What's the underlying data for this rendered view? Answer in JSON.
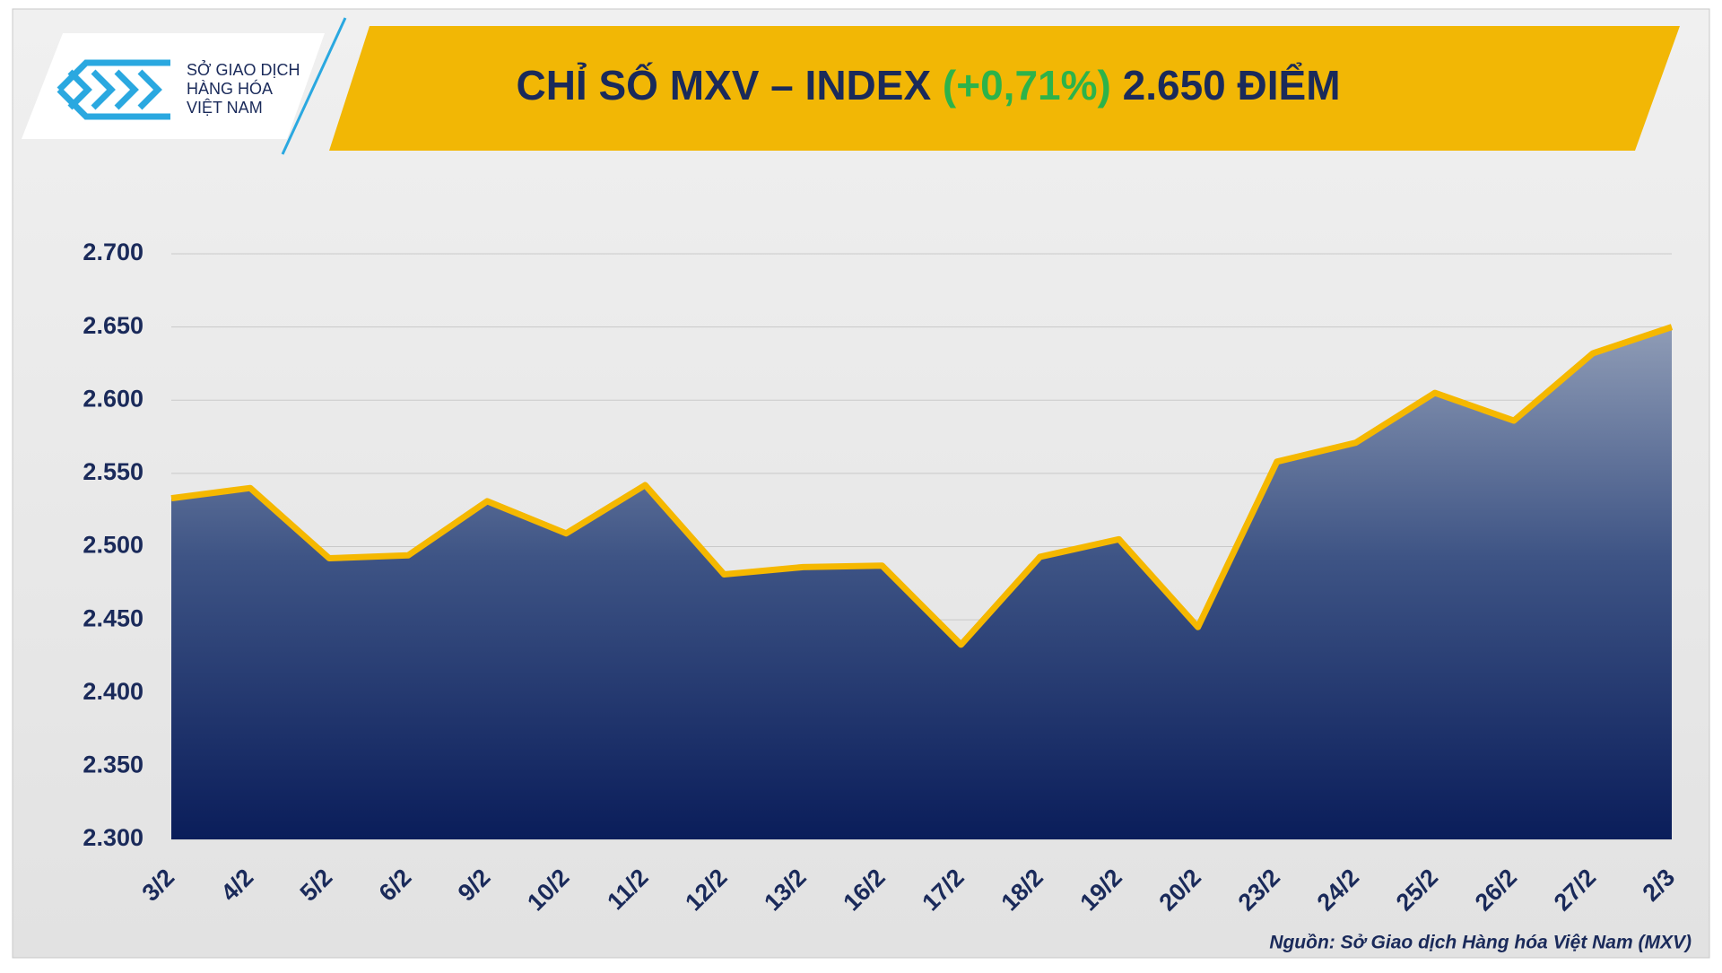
{
  "chart_data": {
    "type": "area",
    "title": {
      "main": "CHỈ SỐ MXV – INDEX",
      "change": "(+0,71%)",
      "value": "2.650 ĐIỂM"
    },
    "logo": {
      "line1": "SỞ GIAO DỊCH",
      "line2": "HÀNG HÓA",
      "line3": "VIỆT NAM"
    },
    "source": "Nguồn: Sở Giao dịch Hàng hóa Việt Nam (MXV)",
    "categories": [
      "3/2",
      "4/2",
      "5/2",
      "6/2",
      "9/2",
      "10/2",
      "11/2",
      "12/2",
      "13/2",
      "16/2",
      "17/2",
      "18/2",
      "19/2",
      "20/2",
      "23/2",
      "24/2",
      "25/2",
      "26/2",
      "27/2",
      "2/3"
    ],
    "values": [
      2533,
      2540,
      2492,
      2494,
      2531,
      2509,
      2542,
      2481,
      2486,
      2487,
      2433,
      2493,
      2505,
      2445,
      2558,
      2571,
      2605,
      2586,
      2632,
      2650
    ],
    "line_color": "#f5b800",
    "ylim": [
      2300,
      2700
    ],
    "yticks": [
      {
        "value": 2300,
        "label": "2.300"
      },
      {
        "value": 2350,
        "label": "2.350"
      },
      {
        "value": 2400,
        "label": "2.400"
      },
      {
        "value": 2450,
        "label": "2.450"
      },
      {
        "value": 2500,
        "label": "2.500"
      },
      {
        "value": 2550,
        "label": "2.550"
      },
      {
        "value": 2600,
        "label": "2.600"
      },
      {
        "value": 2650,
        "label": "2.650"
      },
      {
        "value": 2700,
        "label": "2.700"
      }
    ],
    "grid": true
  }
}
